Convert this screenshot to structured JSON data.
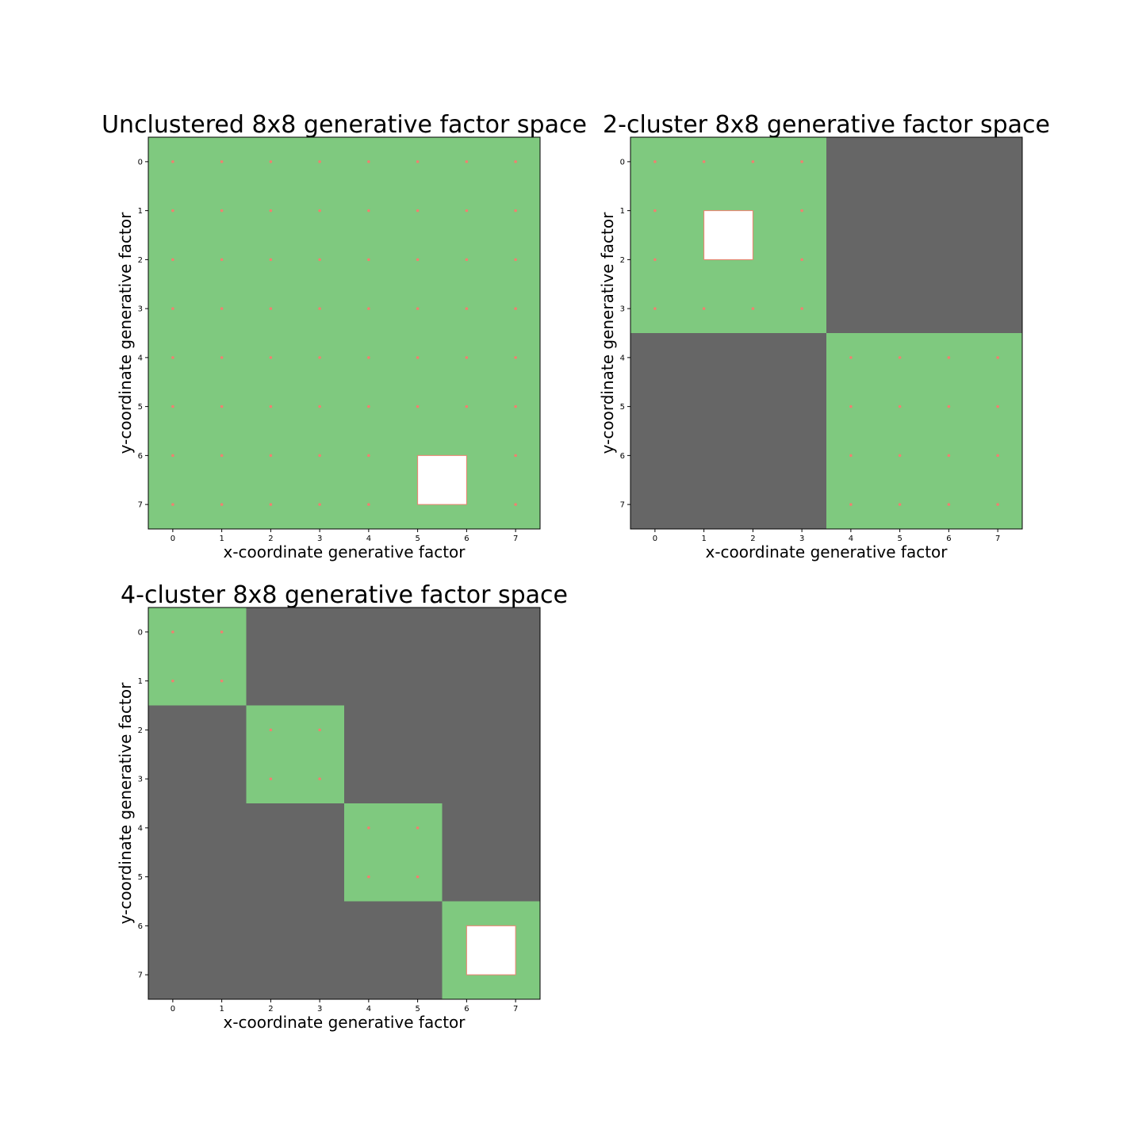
{
  "colors": {
    "in_cluster": "#7fc97f",
    "outside_cluster": "#666666",
    "held_out": "#ffffff",
    "points": "#f08070",
    "held_out_border": "#f08070"
  },
  "chart_data": [
    {
      "type": "heatmap",
      "title": "Unclustered 8x8 generative factor space",
      "xlabel": "x-coordinate generative factor",
      "ylabel": "y-coordinate generative factor",
      "xticks": [
        "0",
        "1",
        "2",
        "3",
        "4",
        "5",
        "6",
        "7"
      ],
      "yticks": [
        "0",
        "1",
        "2",
        "3",
        "4",
        "5",
        "6",
        "7"
      ],
      "xlim": [
        -0.5,
        7.5
      ],
      "ylim": [
        7.5,
        -0.5
      ],
      "clusters": [
        {
          "x_range": [
            0,
            7
          ],
          "y_range": [
            0,
            7
          ]
        }
      ],
      "held_out": {
        "x": [
          5,
          6
        ],
        "y": [
          6,
          7
        ]
      }
    },
    {
      "type": "heatmap",
      "title": "2-cluster 8x8 generative factor space",
      "xlabel": "x-coordinate generative factor",
      "ylabel": "y-coordinate generative factor",
      "xticks": [
        "0",
        "1",
        "2",
        "3",
        "4",
        "5",
        "6",
        "7"
      ],
      "yticks": [
        "0",
        "1",
        "2",
        "3",
        "4",
        "5",
        "6",
        "7"
      ],
      "xlim": [
        -0.5,
        7.5
      ],
      "ylim": [
        7.5,
        -0.5
      ],
      "clusters": [
        {
          "x_range": [
            0,
            3
          ],
          "y_range": [
            0,
            3
          ]
        },
        {
          "x_range": [
            4,
            7
          ],
          "y_range": [
            4,
            7
          ]
        }
      ],
      "held_out": {
        "x": [
          1,
          2
        ],
        "y": [
          1,
          2
        ]
      }
    },
    {
      "type": "heatmap",
      "title": "4-cluster 8x8 generative factor space",
      "xlabel": "x-coordinate generative factor",
      "ylabel": "y-coordinate generative factor",
      "xticks": [
        "0",
        "1",
        "2",
        "3",
        "4",
        "5",
        "6",
        "7"
      ],
      "yticks": [
        "0",
        "1",
        "2",
        "3",
        "4",
        "5",
        "6",
        "7"
      ],
      "xlim": [
        -0.5,
        7.5
      ],
      "ylim": [
        7.5,
        -0.5
      ],
      "clusters": [
        {
          "x_range": [
            0,
            1
          ],
          "y_range": [
            0,
            1
          ]
        },
        {
          "x_range": [
            2,
            3
          ],
          "y_range": [
            2,
            3
          ]
        },
        {
          "x_range": [
            4,
            5
          ],
          "y_range": [
            4,
            5
          ]
        },
        {
          "x_range": [
            6,
            7
          ],
          "y_range": [
            6,
            7
          ]
        }
      ],
      "held_out": {
        "x": [
          6,
          7
        ],
        "y": [
          6,
          7
        ]
      }
    }
  ]
}
